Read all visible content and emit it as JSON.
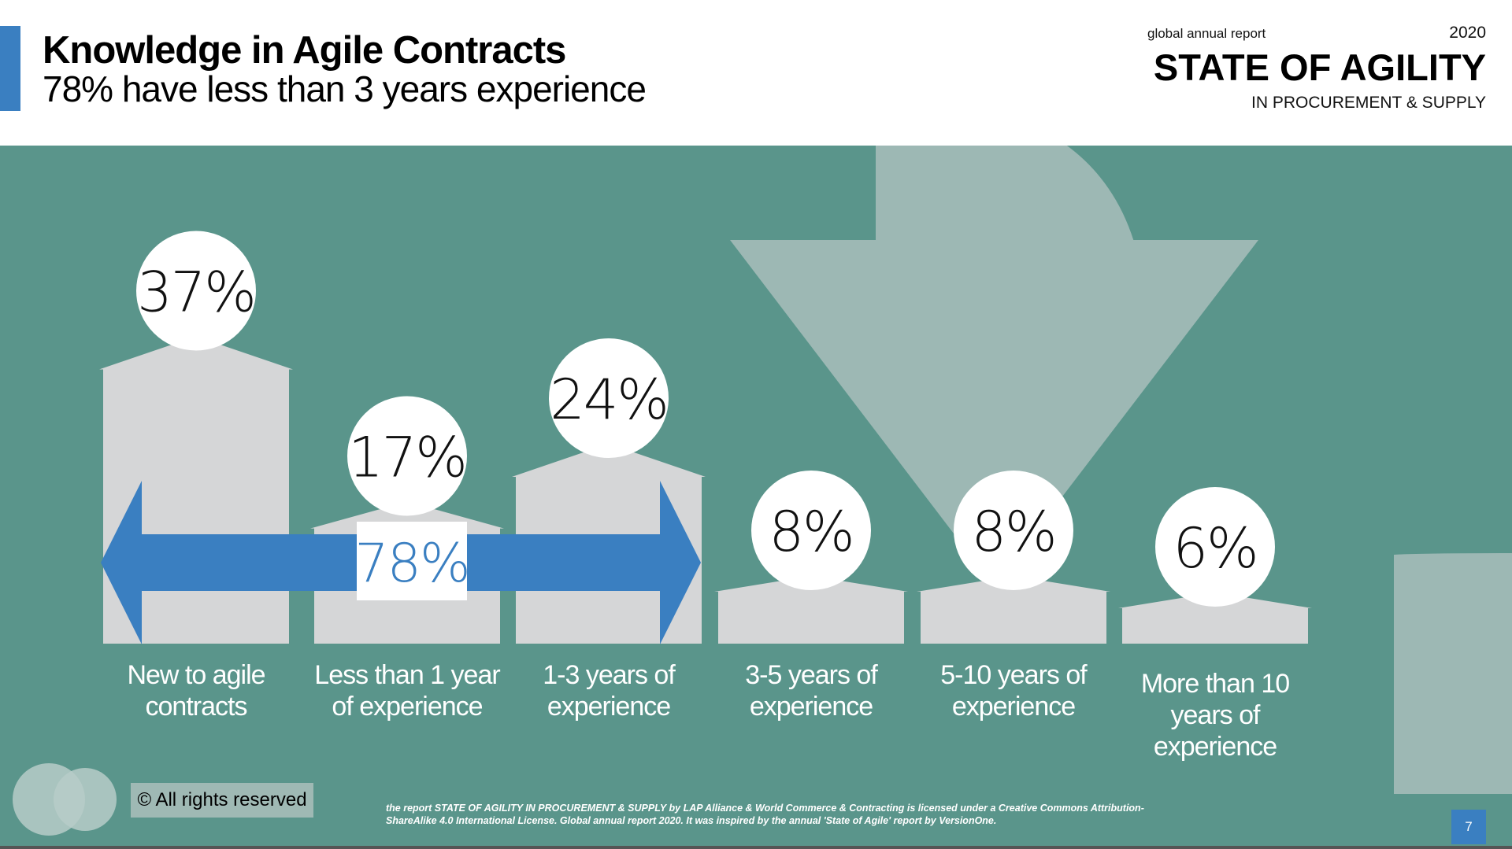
{
  "header": {
    "title": "Knowledge in Agile Contracts",
    "subtitle": "78% have less than 3 years experience"
  },
  "report": {
    "small": "global annual report",
    "year": "2020",
    "big": "STATE OF AGILITY",
    "sub": "IN PROCUREMENT & SUPPLY"
  },
  "chart_data": {
    "type": "bar",
    "categories": [
      "New to agile contracts",
      "Less than 1 year of experience",
      "1-3 years of experience",
      "3-5 years of experience",
      "5-10 years of experience",
      "More than 10 years of experience"
    ],
    "category_lines": [
      [
        "New to agile",
        "contracts"
      ],
      [
        "Less than 1 year",
        "of experience"
      ],
      [
        "1-3 years of",
        "experience"
      ],
      [
        "3-5 years of",
        "experience"
      ],
      [
        "5-10 years of",
        "experience"
      ],
      [
        "More than 10",
        "years of",
        "experience"
      ]
    ],
    "values": [
      37,
      17,
      24,
      8,
      8,
      6
    ],
    "value_labels": [
      "37%",
      "17%",
      "24%",
      "8%",
      "8%",
      "6%"
    ],
    "annotation": "78%",
    "colors": {
      "background": "#5a958b",
      "bars": "#d5d6d7",
      "arrow": "#3a7fc1",
      "big_arrow": "#9db8b4",
      "label_circle": "#ffffff"
    }
  },
  "footer": {
    "rights": "© All rights reserved",
    "license": "the report STATE OF AGILITY IN PROCUREMENT & SUPPLY by LAP Alliance & World Commerce & Contracting is licensed under a Creative Commons Attribution-ShareAlike 4.0 International License. Global annual report 2020. It was inspired by the annual 'State of Agile' report by VersionOne.",
    "page": "7"
  }
}
